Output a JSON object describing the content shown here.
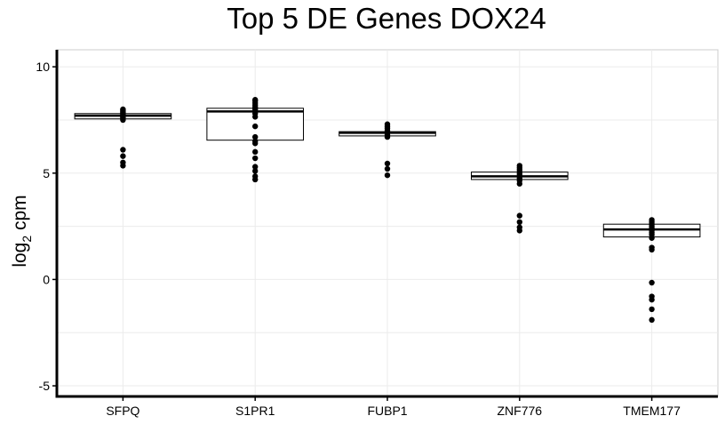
{
  "chart_data": {
    "type": "boxplot",
    "title": "Top 5 DE Genes DOX24",
    "xlabel": "",
    "ylabel": "log",
    "ylabel_subscript": "2",
    "ylabel_suffix": " cpm",
    "ylim": [
      -5.5,
      10.8
    ],
    "yticks": [
      -5,
      0,
      5,
      10
    ],
    "grid": true,
    "categories": [
      "SFPQ",
      "S1PR1",
      "FUBP1",
      "ZNF776",
      "TMEM177"
    ],
    "boxes": [
      {
        "category": "SFPQ",
        "q1": 7.55,
        "median": 7.7,
        "q3": 7.8,
        "points": [
          8.0,
          7.95,
          7.9,
          7.85,
          7.8,
          7.75,
          7.7,
          7.65,
          7.6,
          7.55,
          7.5,
          6.1,
          5.8,
          5.5,
          5.35
        ]
      },
      {
        "category": "S1PR1",
        "q1": 6.55,
        "median": 7.9,
        "q3": 8.05,
        "points": [
          8.45,
          8.4,
          8.3,
          8.2,
          8.1,
          8.0,
          7.9,
          7.8,
          7.65,
          7.2,
          6.7,
          6.5,
          6.4,
          6.0,
          5.7,
          5.3,
          5.1,
          4.85,
          4.7
        ]
      },
      {
        "category": "FUBP1",
        "q1": 6.75,
        "median": 6.9,
        "q3": 6.95,
        "points": [
          7.3,
          7.2,
          7.1,
          7.0,
          6.9,
          6.8,
          6.7,
          5.45,
          5.2,
          4.9
        ]
      },
      {
        "category": "ZNF776",
        "q1": 4.7,
        "median": 4.85,
        "q3": 5.05,
        "points": [
          5.35,
          5.25,
          5.15,
          5.05,
          4.95,
          4.85,
          4.75,
          4.65,
          4.5,
          3.0,
          2.7,
          2.45,
          2.3
        ]
      },
      {
        "category": "TMEM177",
        "q1": 2.0,
        "median": 2.35,
        "q3": 2.6,
        "points": [
          2.8,
          2.7,
          2.6,
          2.5,
          2.4,
          2.3,
          2.2,
          2.1,
          1.95,
          1.5,
          1.4,
          -0.15,
          -0.8,
          -0.95,
          -1.4,
          -1.9
        ]
      }
    ],
    "colors": {
      "box_fill": "#ffffff",
      "box_stroke": "#000000",
      "point": "#000000",
      "grid": "#ebebeb",
      "axis": "#000000"
    }
  }
}
